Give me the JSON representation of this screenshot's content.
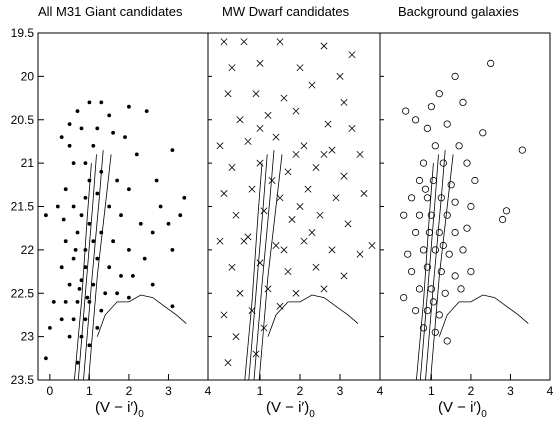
{
  "chart_data": {
    "type": "scatter",
    "xlabel": "(V − i′)",
    "xlabel_sub": "0",
    "xlim": [
      -0.3,
      4.0
    ],
    "ylim": [
      23.5,
      19.5
    ],
    "y_inverted": true,
    "yticks": [
      19.5,
      20,
      20.5,
      21,
      21.5,
      22,
      22.5,
      23,
      23.5
    ],
    "xticks_panel1": [
      0,
      1,
      2,
      3,
      4
    ],
    "xticks_panel23": [
      1,
      2,
      3,
      4
    ],
    "markers": [
      "filled-dot",
      "x-cross",
      "open-circle"
    ],
    "panels": [
      {
        "title": "All M31 Giant candidates",
        "marker": "filled-dot",
        "points": [
          [
            1.0,
            20.3
          ],
          [
            1.3,
            20.3
          ],
          [
            2.0,
            20.35
          ],
          [
            2.45,
            20.4
          ],
          [
            0.7,
            20.4
          ],
          [
            1.5,
            20.45
          ],
          [
            0.5,
            20.55
          ],
          [
            0.8,
            20.6
          ],
          [
            1.2,
            20.6
          ],
          [
            1.6,
            20.65
          ],
          [
            0.3,
            20.7
          ],
          [
            0.5,
            20.8
          ],
          [
            1.1,
            20.8
          ],
          [
            1.9,
            20.7
          ],
          [
            2.2,
            20.9
          ],
          [
            3.1,
            20.85
          ],
          [
            2.7,
            21.2
          ],
          [
            0.4,
            21.3
          ],
          [
            0.6,
            21.0
          ],
          [
            0.9,
            21.0
          ],
          [
            1.3,
            21.1
          ],
          [
            1.7,
            21.2
          ],
          [
            2.0,
            21.3
          ],
          [
            2.8,
            21.5
          ],
          [
            3.3,
            21.6
          ],
          [
            3.4,
            21.4
          ],
          [
            0.2,
            21.5
          ],
          [
            0.35,
            21.65
          ],
          [
            -0.1,
            21.6
          ],
          [
            0.6,
            21.5
          ],
          [
            0.9,
            21.4
          ],
          [
            1.2,
            21.35
          ],
          [
            1.5,
            21.5
          ],
          [
            1.8,
            21.6
          ],
          [
            2.3,
            21.7
          ],
          [
            2.6,
            21.8
          ],
          [
            3.0,
            21.7
          ],
          [
            0.4,
            21.9
          ],
          [
            0.7,
            21.8
          ],
          [
            1.0,
            21.7
          ],
          [
            1.3,
            21.8
          ],
          [
            1.6,
            21.9
          ],
          [
            2.0,
            22.0
          ],
          [
            2.4,
            22.1
          ],
          [
            3.1,
            22.0
          ],
          [
            0.3,
            22.2
          ],
          [
            0.6,
            22.1
          ],
          [
            0.9,
            22.0
          ],
          [
            1.2,
            22.1
          ],
          [
            1.5,
            22.2
          ],
          [
            1.8,
            22.3
          ],
          [
            2.1,
            22.3
          ],
          [
            2.6,
            22.4
          ],
          [
            0.5,
            22.4
          ],
          [
            0.8,
            22.35
          ],
          [
            1.1,
            22.4
          ],
          [
            1.4,
            22.5
          ],
          [
            1.7,
            22.5
          ],
          [
            2.0,
            22.55
          ],
          [
            0.1,
            22.6
          ],
          [
            0.4,
            22.6
          ],
          [
            0.7,
            22.6
          ],
          [
            1.0,
            22.6
          ],
          [
            1.3,
            22.7
          ],
          [
            3.1,
            22.65
          ],
          [
            0.3,
            22.8
          ],
          [
            0.6,
            22.8
          ],
          [
            0.9,
            22.8
          ],
          [
            1.2,
            22.9
          ],
          [
            0.0,
            22.9
          ],
          [
            0.5,
            23.0
          ],
          [
            0.8,
            23.0
          ],
          [
            1.0,
            23.1
          ],
          [
            -0.1,
            23.25
          ],
          [
            0.7,
            23.3
          ],
          [
            0.9,
            22.2
          ],
          [
            1.1,
            21.9
          ],
          [
            0.8,
            21.6
          ],
          [
            1.0,
            21.2
          ],
          [
            0.75,
            22.45
          ],
          [
            0.65,
            22.0
          ],
          [
            0.95,
            22.55
          ]
        ]
      },
      {
        "title": "MW Dwarf candidates",
        "marker": "x-cross",
        "points": [
          [
            0.1,
            19.6
          ],
          [
            0.6,
            19.6
          ],
          [
            1.5,
            19.6
          ],
          [
            2.6,
            19.65
          ],
          [
            3.3,
            19.75
          ],
          [
            0.3,
            19.9
          ],
          [
            1.0,
            19.85
          ],
          [
            2.0,
            19.9
          ],
          [
            3.0,
            20.0
          ],
          [
            0.2,
            20.2
          ],
          [
            0.9,
            20.2
          ],
          [
            1.6,
            20.25
          ],
          [
            2.3,
            20.1
          ],
          [
            3.1,
            20.3
          ],
          [
            0.5,
            20.5
          ],
          [
            1.2,
            20.45
          ],
          [
            1.9,
            20.4
          ],
          [
            2.7,
            20.55
          ],
          [
            3.3,
            20.6
          ],
          [
            0.0,
            20.8
          ],
          [
            0.7,
            20.75
          ],
          [
            1.4,
            20.7
          ],
          [
            2.1,
            20.8
          ],
          [
            2.8,
            20.85
          ],
          [
            3.5,
            20.9
          ],
          [
            0.3,
            21.05
          ],
          [
            1.0,
            21.0
          ],
          [
            1.7,
            21.1
          ],
          [
            2.4,
            21.05
          ],
          [
            3.1,
            21.15
          ],
          [
            0.1,
            21.35
          ],
          [
            0.8,
            21.3
          ],
          [
            1.5,
            21.4
          ],
          [
            2.2,
            21.3
          ],
          [
            2.9,
            21.4
          ],
          [
            3.6,
            21.35
          ],
          [
            0.4,
            21.6
          ],
          [
            1.1,
            21.55
          ],
          [
            1.8,
            21.65
          ],
          [
            2.5,
            21.6
          ],
          [
            3.2,
            21.7
          ],
          [
            0.0,
            21.9
          ],
          [
            0.7,
            21.85
          ],
          [
            1.4,
            21.95
          ],
          [
            2.1,
            21.9
          ],
          [
            2.8,
            22.0
          ],
          [
            3.5,
            22.05
          ],
          [
            0.3,
            22.2
          ],
          [
            1.0,
            22.15
          ],
          [
            1.7,
            22.25
          ],
          [
            2.4,
            22.2
          ],
          [
            3.1,
            22.3
          ],
          [
            0.5,
            22.5
          ],
          [
            1.2,
            22.45
          ],
          [
            1.9,
            22.5
          ],
          [
            2.6,
            22.45
          ],
          [
            0.1,
            22.75
          ],
          [
            0.8,
            22.7
          ],
          [
            1.5,
            22.65
          ],
          [
            0.4,
            23.0
          ],
          [
            1.1,
            22.9
          ],
          [
            0.2,
            23.3
          ],
          [
            0.9,
            23.2
          ],
          [
            1.3,
            21.2
          ],
          [
            2.0,
            21.5
          ],
          [
            2.6,
            20.9
          ],
          [
            1.6,
            22.0
          ],
          [
            2.3,
            21.8
          ],
          [
            1.0,
            20.6
          ],
          [
            1.9,
            20.9
          ],
          [
            0.6,
            21.9
          ],
          [
            3.8,
            21.95
          ]
        ]
      },
      {
        "title": "Background galaxies",
        "marker": "open-circle",
        "points": [
          [
            2.5,
            19.85
          ],
          [
            1.6,
            20.0
          ],
          [
            0.35,
            20.4
          ],
          [
            1.2,
            20.2
          ],
          [
            1.0,
            20.35
          ],
          [
            1.8,
            20.3
          ],
          [
            0.6,
            20.5
          ],
          [
            1.4,
            20.55
          ],
          [
            0.9,
            20.6
          ],
          [
            2.3,
            20.65
          ],
          [
            1.1,
            20.8
          ],
          [
            1.7,
            20.8
          ],
          [
            3.3,
            20.85
          ],
          [
            0.8,
            21.0
          ],
          [
            1.3,
            21.0
          ],
          [
            1.9,
            21.0
          ],
          [
            0.7,
            21.2
          ],
          [
            1.05,
            21.2
          ],
          [
            1.5,
            21.25
          ],
          [
            2.1,
            21.2
          ],
          [
            0.5,
            21.4
          ],
          [
            0.9,
            21.4
          ],
          [
            1.25,
            21.4
          ],
          [
            1.6,
            21.45
          ],
          [
            2.0,
            21.5
          ],
          [
            0.3,
            21.6
          ],
          [
            0.7,
            21.6
          ],
          [
            1.0,
            21.6
          ],
          [
            1.4,
            21.6
          ],
          [
            2.8,
            21.65
          ],
          [
            2.9,
            21.55
          ],
          [
            0.6,
            21.8
          ],
          [
            0.95,
            21.8
          ],
          [
            1.2,
            21.8
          ],
          [
            1.6,
            21.8
          ],
          [
            1.9,
            21.75
          ],
          [
            0.4,
            22.05
          ],
          [
            0.8,
            22.0
          ],
          [
            1.1,
            22.0
          ],
          [
            1.45,
            22.05
          ],
          [
            1.8,
            22.0
          ],
          [
            0.5,
            22.25
          ],
          [
            0.9,
            22.2
          ],
          [
            1.25,
            22.25
          ],
          [
            1.6,
            22.3
          ],
          [
            2.0,
            22.25
          ],
          [
            0.3,
            22.55
          ],
          [
            0.7,
            22.45
          ],
          [
            1.0,
            22.45
          ],
          [
            1.35,
            22.5
          ],
          [
            1.75,
            22.45
          ],
          [
            0.6,
            22.7
          ],
          [
            0.9,
            22.7
          ],
          [
            1.2,
            22.75
          ],
          [
            0.8,
            22.9
          ],
          [
            1.1,
            22.95
          ],
          [
            1.4,
            23.05
          ],
          [
            1.05,
            22.6
          ],
          [
            1.3,
            21.95
          ],
          [
            0.85,
            21.3
          ]
        ]
      }
    ]
  }
}
